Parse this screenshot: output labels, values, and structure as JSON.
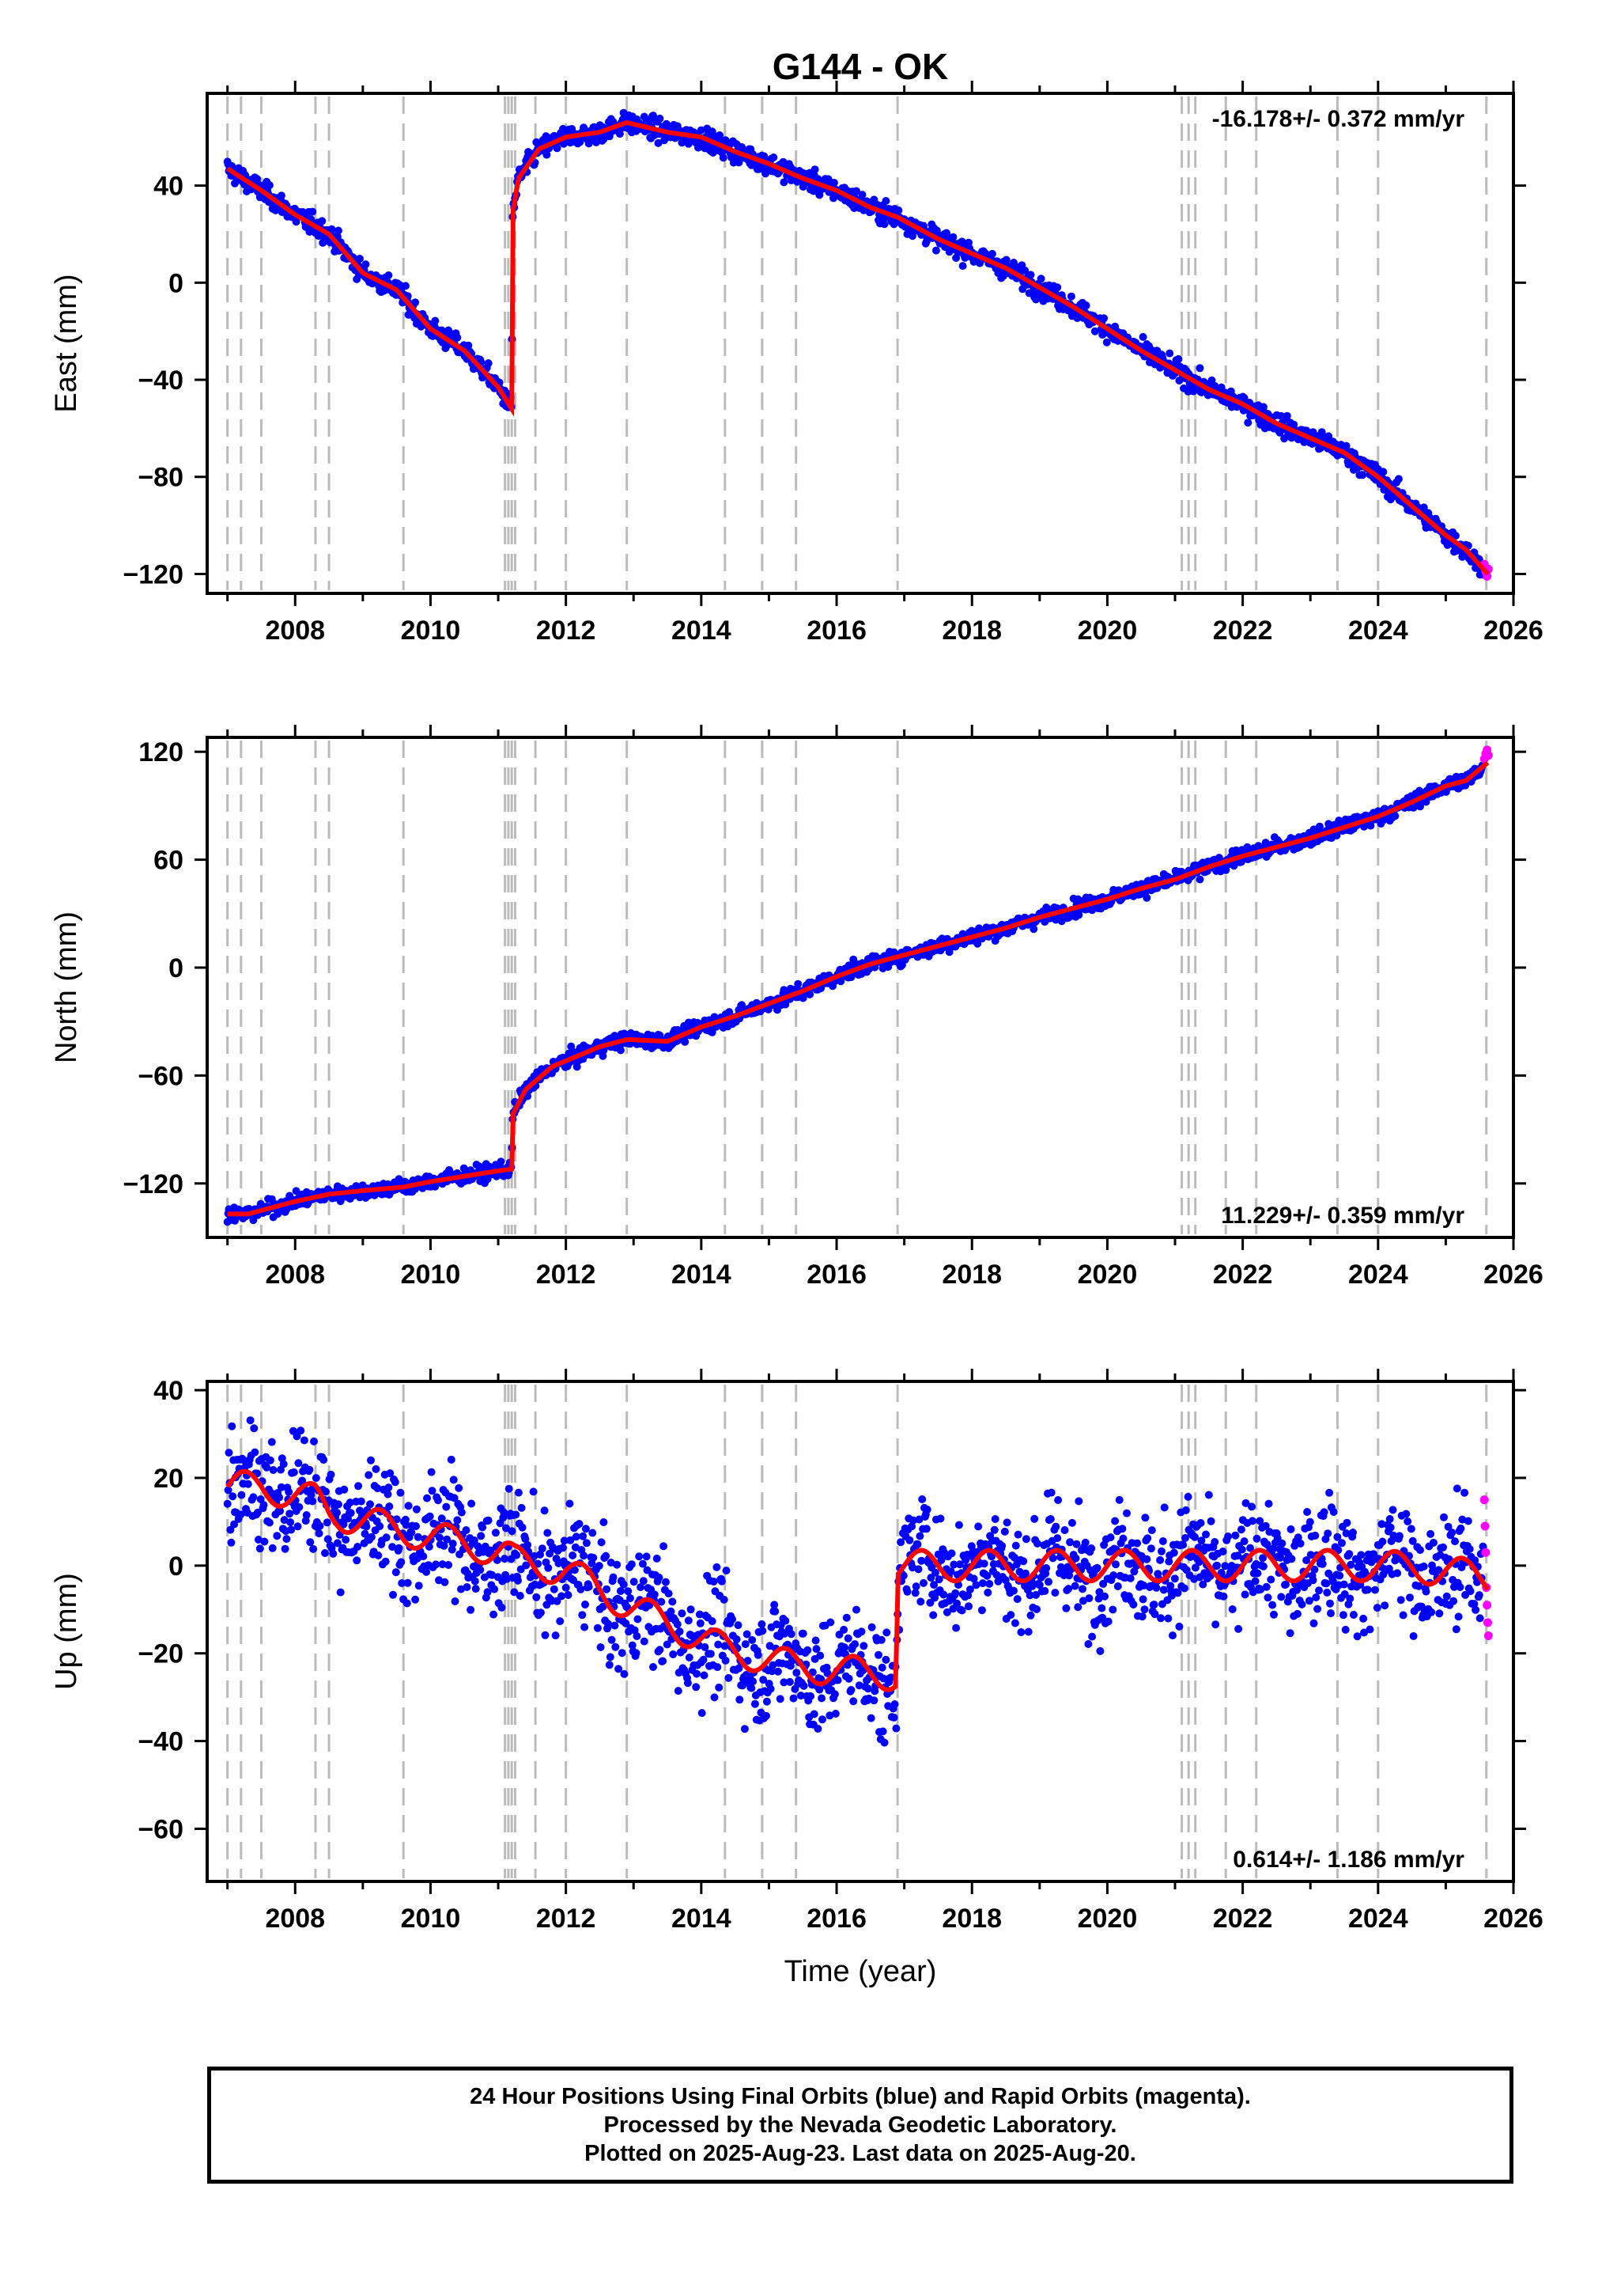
{
  "title": "G144 - OK",
  "footer": {
    "line1": "24 Hour Positions Using Final Orbits (blue) and Rapid Orbits (magenta).",
    "line2": "Processed by the Nevada Geodetic Laboratory.",
    "line3": "Plotted on 2025-Aug-23. Last data on 2025-Aug-20."
  },
  "colors": {
    "final_orbits": "#0000ff",
    "rapid_orbits": "#ff00ff",
    "model": "#ff0000",
    "event_lines": "#bbbbbb"
  },
  "chart_data": [
    {
      "type": "scatter",
      "title": "G144 - OK",
      "xlabel": "",
      "ylabel": "East (mm)",
      "xlim": [
        2006.7,
        2026.0
      ],
      "ylim": [
        -128,
        78
      ],
      "x_ticks": [
        2008,
        2010,
        2012,
        2014,
        2016,
        2018,
        2020,
        2022,
        2024,
        2026
      ],
      "y_ticks": [
        -120,
        -80,
        -40,
        0,
        40
      ],
      "rate_text": "-16.178+/- 0.372 mm/yr",
      "rate_position": "top-right",
      "grid": false,
      "event_lines": [
        2007.0,
        2007.2,
        2007.5,
        2008.3,
        2008.5,
        2009.6,
        2011.1,
        2011.15,
        2011.2,
        2011.25,
        2011.55,
        2012.0,
        2012.9,
        2014.35,
        2014.9,
        2015.4,
        2016.9,
        2021.1,
        2021.2,
        2021.3,
        2021.75,
        2022.2,
        2023.4,
        2024.0,
        2025.6
      ],
      "model_trend": {
        "name": "model",
        "x": [
          2007.0,
          2007.5,
          2008.0,
          2008.5,
          2009.0,
          2009.5,
          2010.0,
          2010.5,
          2011.0,
          2011.2,
          2011.21,
          2011.3,
          2011.6,
          2012.0,
          2012.5,
          2012.9,
          2013.5,
          2014.0,
          2014.5,
          2015.0,
          2015.5,
          2016.0,
          2016.5,
          2016.9,
          2017.5,
          2018.0,
          2018.5,
          2019.0,
          2019.5,
          2020.0,
          2020.5,
          2021.0,
          2021.5,
          2022.0,
          2022.5,
          2023.0,
          2023.5,
          2024.0,
          2024.5,
          2025.0,
          2025.3,
          2025.62
        ],
        "y": [
          47,
          38,
          28,
          20,
          4,
          -3,
          -19,
          -28,
          -43,
          -52,
          28,
          43,
          55,
          60,
          62,
          66,
          62,
          60,
          54,
          49,
          43,
          38,
          31,
          27,
          18,
          12,
          6,
          -2,
          -10,
          -19,
          -28,
          -36,
          -44,
          -50,
          -58,
          -64,
          -70,
          -80,
          -92,
          -104,
          -110,
          -120
        ]
      },
      "final_orbits": {
        "name": "Final Orbits",
        "color": "#0000ff",
        "scatter_mm": 3.0,
        "x_range": [
          2007.0,
          2025.55
        ]
      },
      "rapid_orbits": {
        "name": "Rapid Orbits",
        "color": "#ff00ff",
        "x": [
          2025.57,
          2025.59,
          2025.61,
          2025.63
        ],
        "y": [
          -116,
          -119,
          -121,
          -118
        ]
      }
    },
    {
      "type": "scatter",
      "xlabel": "",
      "ylabel": "North (mm)",
      "xlim": [
        2006.7,
        2026.0
      ],
      "ylim": [
        -150,
        128
      ],
      "x_ticks": [
        2008,
        2010,
        2012,
        2014,
        2016,
        2018,
        2020,
        2022,
        2024,
        2026
      ],
      "y_ticks": [
        -120,
        -60,
        0,
        60,
        120
      ],
      "rate_text": "11.229+/- 0.359 mm/yr",
      "rate_position": "bottom-right",
      "grid": false,
      "event_lines": [
        2007.0,
        2007.2,
        2007.5,
        2008.3,
        2008.5,
        2009.6,
        2011.1,
        2011.15,
        2011.2,
        2011.25,
        2011.55,
        2012.0,
        2012.9,
        2014.35,
        2014.9,
        2015.4,
        2016.9,
        2021.1,
        2021.2,
        2021.3,
        2021.75,
        2022.2,
        2023.4,
        2024.0,
        2025.6
      ],
      "model_trend": {
        "name": "model",
        "x": [
          2007.0,
          2007.3,
          2008.0,
          2008.5,
          2009.0,
          2009.6,
          2010.0,
          2010.5,
          2011.0,
          2011.2,
          2011.21,
          2011.4,
          2011.8,
          2012.5,
          2012.9,
          2013.5,
          2014.0,
          2014.5,
          2015.0,
          2015.5,
          2016.0,
          2016.5,
          2016.9,
          2017.5,
          2018.0,
          2018.5,
          2019.0,
          2019.5,
          2020.0,
          2020.5,
          2021.0,
          2021.5,
          2022.0,
          2022.5,
          2023.0,
          2023.5,
          2024.0,
          2024.5,
          2025.0,
          2025.3,
          2025.62
        ],
        "y": [
          -137,
          -137,
          -130,
          -126,
          -124,
          -122,
          -119,
          -116,
          -113,
          -112,
          -82,
          -68,
          -55,
          -44,
          -40,
          -41,
          -33,
          -27,
          -20,
          -13,
          -5,
          2,
          6,
          12,
          17,
          22,
          28,
          33,
          38,
          44,
          49,
          56,
          62,
          67,
          72,
          78,
          84,
          92,
          101,
          104,
          114
        ]
      },
      "final_orbits": {
        "name": "Final Orbits",
        "color": "#0000ff",
        "scatter_mm": 3.0,
        "x_range": [
          2007.0,
          2025.55
        ]
      },
      "rapid_orbits": {
        "name": "Rapid Orbits",
        "color": "#ff00ff",
        "x": [
          2025.57,
          2025.59,
          2025.61,
          2025.63
        ],
        "y": [
          116,
          119,
          121,
          118
        ]
      }
    },
    {
      "type": "scatter",
      "xlabel": "Time (year)",
      "ylabel": "Up (mm)",
      "xlim": [
        2006.7,
        2026.0
      ],
      "ylim": [
        -72,
        42
      ],
      "x_ticks": [
        2008,
        2010,
        2012,
        2014,
        2016,
        2018,
        2020,
        2022,
        2024,
        2026
      ],
      "y_ticks": [
        -60,
        -40,
        -20,
        0,
        20,
        40
      ],
      "rate_text": "0.614+/- 1.186 mm/yr",
      "rate_position": "bottom-right",
      "grid": false,
      "event_lines": [
        2007.0,
        2007.2,
        2007.5,
        2008.3,
        2008.5,
        2009.6,
        2011.1,
        2011.15,
        2011.2,
        2011.25,
        2011.55,
        2012.0,
        2012.9,
        2014.35,
        2014.9,
        2015.4,
        2016.9,
        2021.1,
        2021.2,
        2021.3,
        2021.75,
        2022.2,
        2023.4,
        2024.0,
        2025.6
      ],
      "model_trend": {
        "name": "model",
        "seasonal_amplitude_mm": 3.5,
        "x": [
          2007.0,
          2007.5,
          2008.3,
          2008.5,
          2009.6,
          2011.1,
          2011.25,
          2012.0,
          2012.9,
          2014.35,
          2014.9,
          2015.4,
          2016.88,
          2016.9,
          2018.0,
          2020.0,
          2021.2,
          2022.0,
          2024.0,
          2025.0,
          2025.62
        ],
        "y": [
          18,
          18,
          15,
          12,
          8,
          3,
          1,
          -1,
          -9,
          -19,
          -21,
          -23,
          -25,
          0,
          0,
          0,
          0,
          0,
          0,
          -1,
          -3
        ]
      },
      "final_orbits": {
        "name": "Final Orbits",
        "color": "#0000ff",
        "scatter_mm": 9.0,
        "x_range": [
          2007.0,
          2025.55
        ]
      },
      "rapid_orbits": {
        "name": "Rapid Orbits",
        "color": "#ff00ff",
        "x": [
          2025.57,
          2025.58,
          2025.59,
          2025.6,
          2025.61,
          2025.62,
          2025.63
        ],
        "y": [
          15,
          9,
          3,
          -5,
          -9,
          -13,
          -16
        ]
      }
    }
  ]
}
